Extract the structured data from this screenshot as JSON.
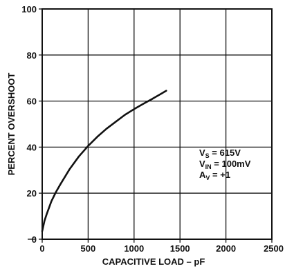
{
  "chart_data": {
    "type": "line",
    "title": "",
    "xlabel": "CAPACITIVE LOAD – pF",
    "ylabel": "PERCENT OVERSHOOT",
    "xlim": [
      0,
      2500
    ],
    "ylim": [
      0,
      100
    ],
    "x_ticks": [
      0,
      500,
      1000,
      1500,
      2000,
      2500
    ],
    "y_ticks": [
      0,
      20,
      40,
      60,
      80,
      100
    ],
    "x_tick_labels": [
      "0",
      "500",
      "1000",
      "1500",
      "2000",
      "2500"
    ],
    "y_tick_labels": [
      "0",
      "20",
      "40",
      "60",
      "80",
      "100"
    ],
    "grid": true,
    "series": [
      {
        "name": "",
        "x": [
          0,
          25,
          50,
          100,
          150,
          200,
          300,
          400,
          500,
          600,
          700,
          800,
          900,
          1000,
          1100,
          1200,
          1300,
          1350
        ],
        "y": [
          3.5,
          8,
          11,
          16.5,
          20.5,
          24,
          30.5,
          36,
          40.5,
          44.5,
          48,
          51,
          54,
          56.5,
          58.8,
          61,
          63.3,
          64.5
        ]
      }
    ],
    "annotations": [
      {
        "main": "V",
        "sub": "S",
        "rest": " = 615V"
      },
      {
        "main": "V",
        "sub": "IN",
        "rest": " = 100mV"
      },
      {
        "main": "A",
        "sub": "V",
        "rest": " = +1"
      }
    ]
  }
}
